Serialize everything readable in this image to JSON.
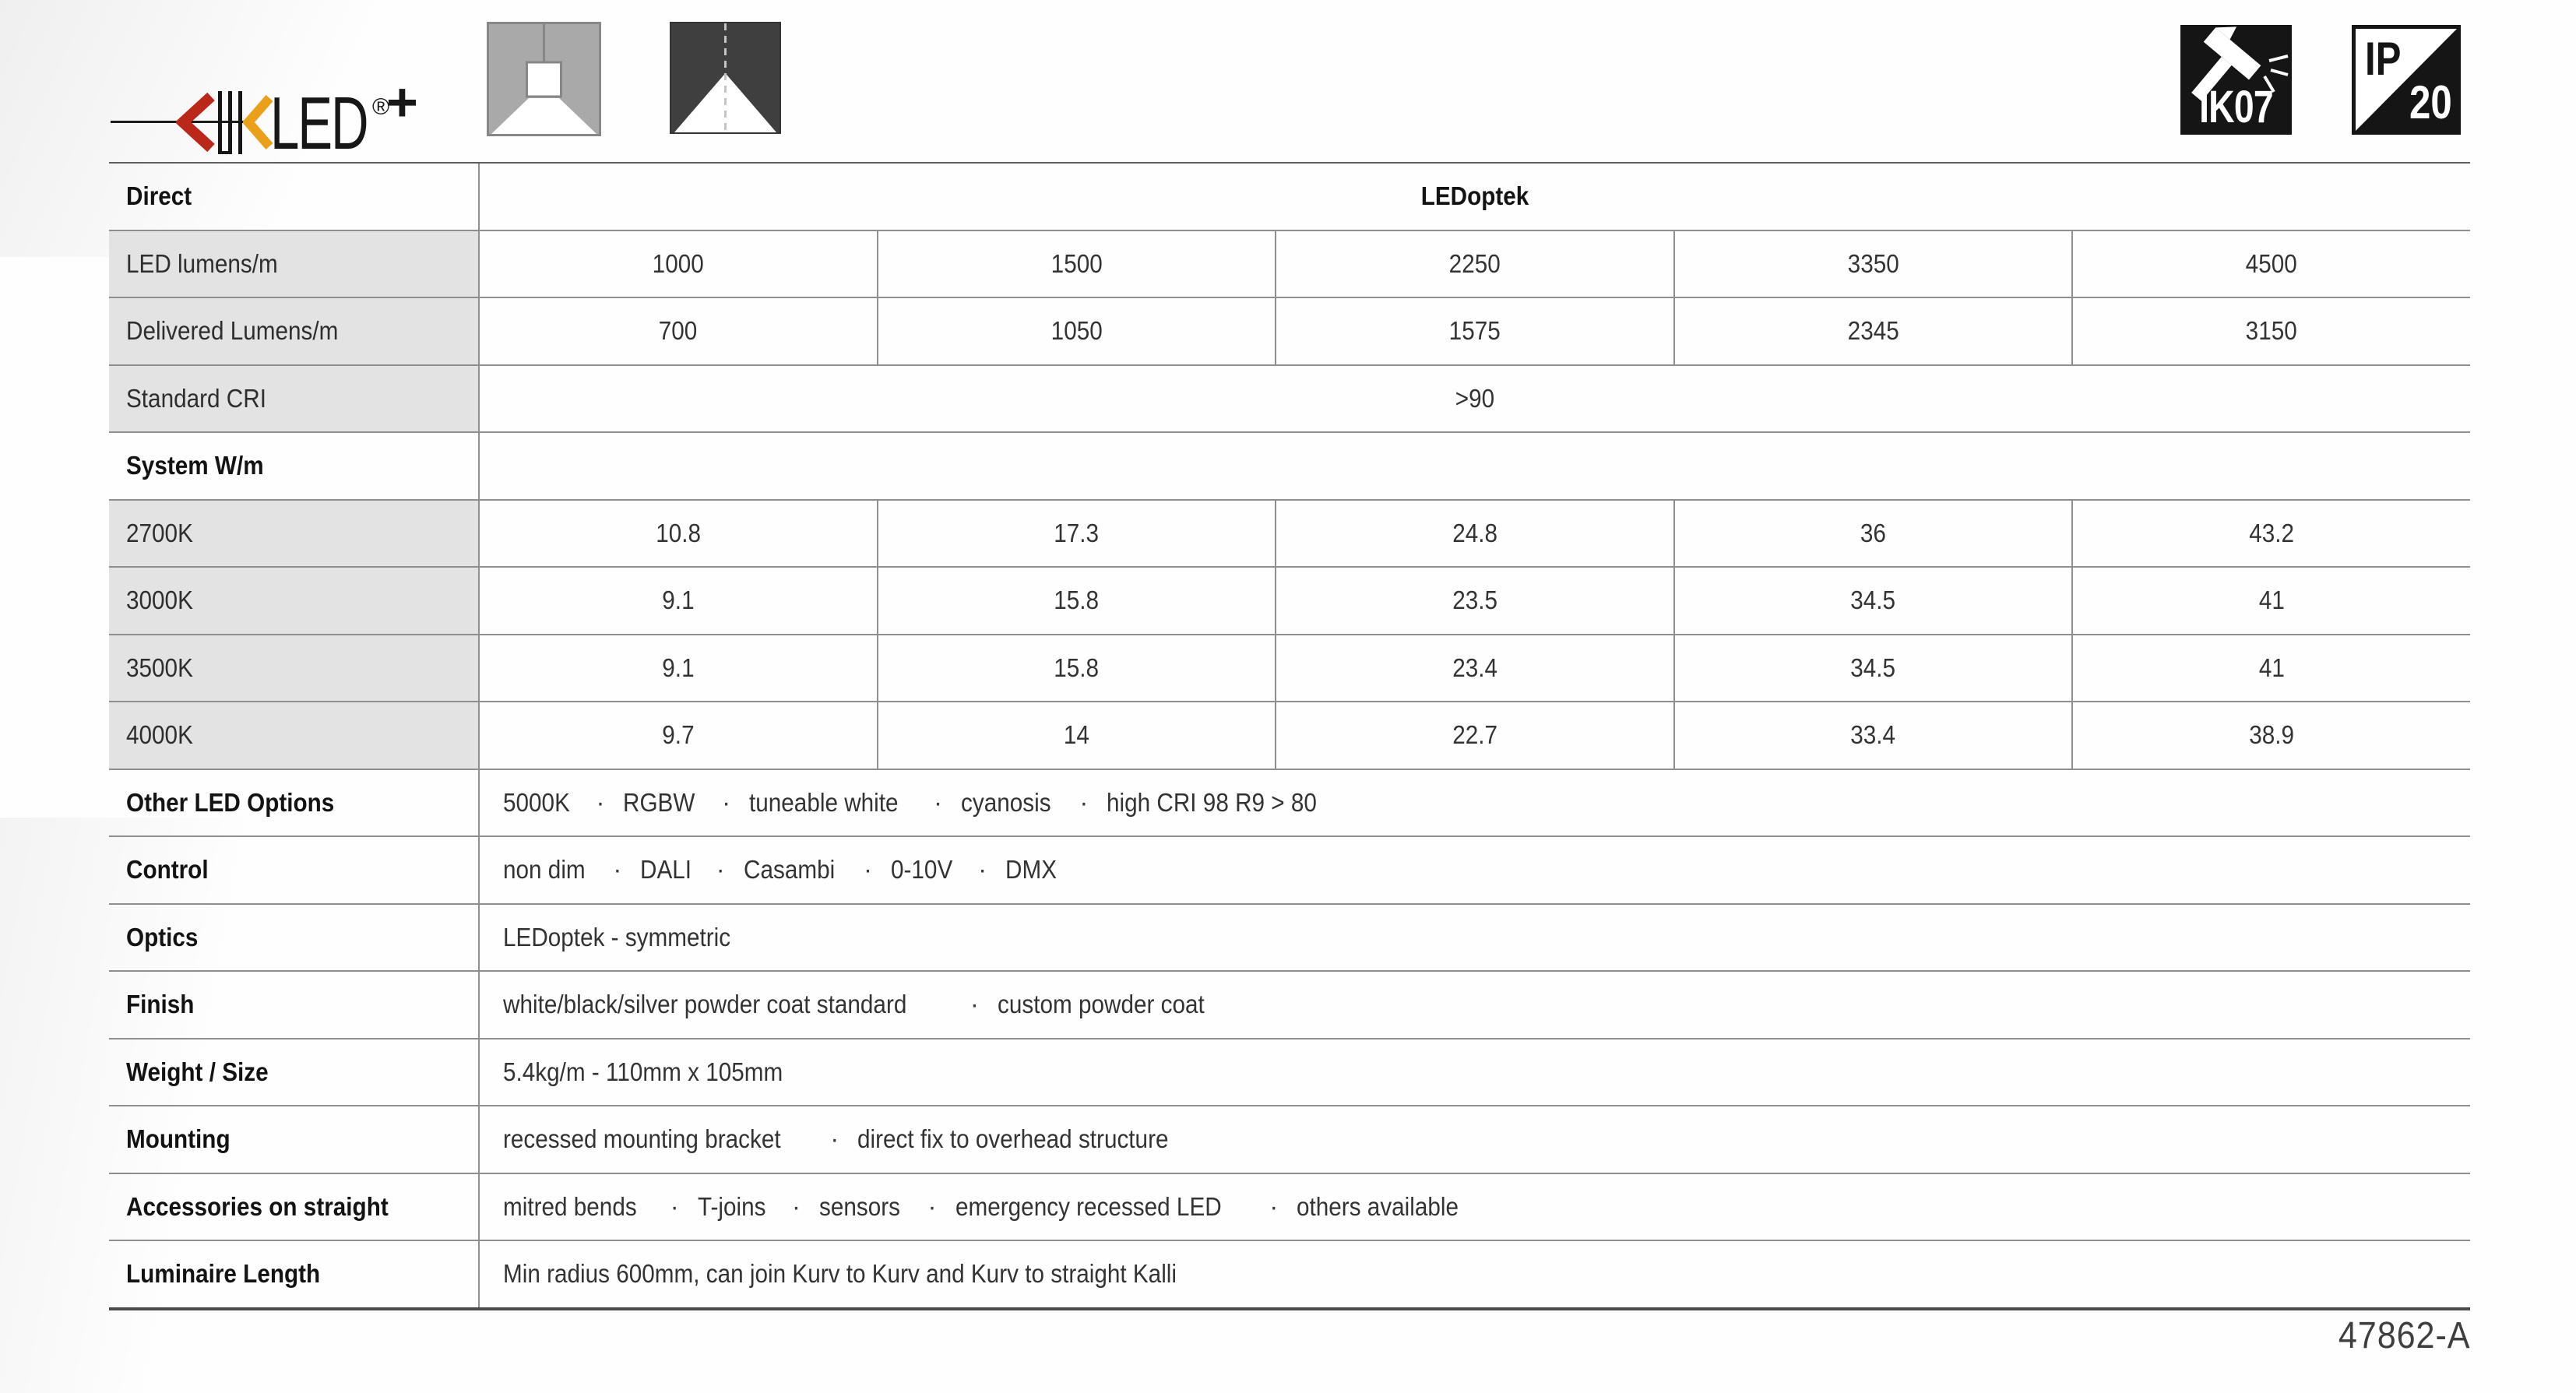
{
  "page": {
    "footer_code": "47862-A"
  },
  "logo": {
    "name": "KLIKLED",
    "led_text": "LED",
    "reg_mark": "®",
    "plus_mark": "+",
    "colors": {
      "red_chevron": "#bb2718",
      "orange_chevron": "#eba01a",
      "black": "#171717"
    }
  },
  "pictograms": {
    "suspended_luminaire_icon": "suspended-direct-light-distribution",
    "beam_icon": "direct-beam-distribution",
    "impact_rating": "IK07",
    "ingress_top": "IP",
    "ingress_bottom": "20"
  },
  "colors": {
    "label_cell_gray": "#e3e3e3",
    "border_gray": "#8f8f8f",
    "icon_gray": "#a9a9a9",
    "icon_dark": "#3f3f3f",
    "badge_black": "#151515"
  },
  "table": {
    "rows": [
      {
        "type": "header",
        "label": "Direct",
        "value": "LEDoptek"
      },
      {
        "type": "data",
        "label": "LED lumens/m",
        "values": [
          "1000",
          "1500",
          "2250",
          "3350",
          "4500"
        ]
      },
      {
        "type": "data",
        "label": "Delivered Lumens/m",
        "values": [
          "700",
          "1050",
          "1575",
          "2345",
          "3150"
        ]
      },
      {
        "type": "merged",
        "label": "Standard CRI",
        "value": ">90"
      },
      {
        "type": "section",
        "label": "System W/m",
        "value": ""
      },
      {
        "type": "data",
        "label": "2700K",
        "values": [
          "10.8",
          "17.3",
          "24.8",
          "36",
          "43.2"
        ]
      },
      {
        "type": "data",
        "label": "3000K",
        "values": [
          "9.1",
          "15.8",
          "23.5",
          "34.5",
          "41"
        ]
      },
      {
        "type": "data",
        "label": "3500K",
        "values": [
          "9.1",
          "15.8",
          "23.4",
          "34.5",
          "41"
        ]
      },
      {
        "type": "data",
        "label": "4000K",
        "values": [
          "9.7",
          "14",
          "22.7",
          "33.4",
          "38.9"
        ]
      },
      {
        "type": "attr",
        "label": "Other LED Options",
        "items": [
          "5000K",
          "RGBW",
          "tuneable white",
          "cyanosis",
          "high CRI 98 R9 > 80"
        ]
      },
      {
        "type": "attr",
        "label": "Control",
        "items": [
          "non dim",
          "DALI",
          "Casambi",
          "0-10V",
          "DMX"
        ]
      },
      {
        "type": "attr",
        "label": "Optics",
        "items": [
          "LEDoptek - symmetric"
        ]
      },
      {
        "type": "attr",
        "label": "Finish",
        "items": [
          "white/black/silver powder coat standard",
          "custom powder coat"
        ]
      },
      {
        "type": "attr",
        "label": "Weight / Size",
        "items": [
          "5.4kg/m - 110mm x 105mm"
        ]
      },
      {
        "type": "attr",
        "label": "Mounting",
        "items": [
          "recessed mounting bracket",
          "direct fix to overhead structure"
        ]
      },
      {
        "type": "attr",
        "label": "Accessories on straight",
        "items": [
          "mitred bends",
          "T-joins",
          "sensors",
          "emergency recessed LED",
          "others available"
        ]
      },
      {
        "type": "attr",
        "label": "Luminaire Length",
        "items": [
          "Min radius 600mm, can join Kurv to Kurv and Kurv to straight Kalli"
        ]
      }
    ]
  }
}
